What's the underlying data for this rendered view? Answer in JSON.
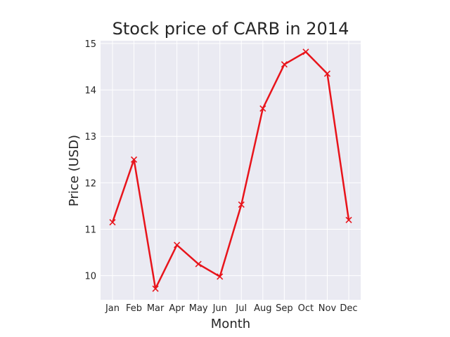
{
  "chart_data": {
    "type": "line",
    "title": "Stock price of CARB in 2014",
    "xlabel": "Month",
    "ylabel": "Price (USD)",
    "categories": [
      "Jan",
      "Feb",
      "Mar",
      "Apr",
      "May",
      "Jun",
      "Jul",
      "Aug",
      "Sep",
      "Oct",
      "Nov",
      "Dec"
    ],
    "series": [
      {
        "values": [
          11.15,
          12.5,
          9.72,
          10.66,
          10.25,
          9.98,
          11.53,
          13.6,
          14.55,
          14.82,
          14.35,
          11.2
        ],
        "color": "#e8141b",
        "marker": "x"
      }
    ],
    "ylim": [
      9.48,
      15.06
    ],
    "yticks": [
      10,
      11,
      12,
      13,
      14,
      15
    ],
    "grid": true,
    "legend": "none",
    "style": {
      "plot_background": "#eaeaf2",
      "grid_color": "#ffffff"
    }
  }
}
